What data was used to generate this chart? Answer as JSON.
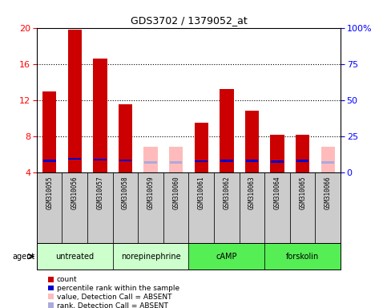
{
  "title": "GDS3702 / 1379052_at",
  "samples": [
    "GSM310055",
    "GSM310056",
    "GSM310057",
    "GSM310058",
    "GSM310059",
    "GSM310060",
    "GSM310061",
    "GSM310062",
    "GSM310063",
    "GSM310064",
    "GSM310065",
    "GSM310066"
  ],
  "red_values": [
    13.0,
    19.8,
    16.6,
    11.5,
    null,
    null,
    9.5,
    13.2,
    10.8,
    8.2,
    8.2,
    null
  ],
  "pink_values": [
    null,
    null,
    null,
    null,
    6.8,
    6.8,
    null,
    null,
    null,
    null,
    null,
    6.8
  ],
  "blue_rank": [
    8.1,
    9.5,
    9.0,
    8.2,
    null,
    null,
    7.8,
    8.1,
    8.1,
    7.5,
    8.1,
    null
  ],
  "lavender_rank": [
    null,
    null,
    null,
    null,
    7.0,
    7.0,
    null,
    null,
    null,
    null,
    null,
    7.0
  ],
  "groups": [
    {
      "label": "untreated",
      "start": 0,
      "end": 3,
      "color": "#ccffcc"
    },
    {
      "label": "norepinephrine",
      "start": 3,
      "end": 6,
      "color": "#ccffcc"
    },
    {
      "label": "cAMP",
      "start": 6,
      "end": 9,
      "color": "#55ee55"
    },
    {
      "label": "forskolin",
      "start": 9,
      "end": 12,
      "color": "#55ee55"
    }
  ],
  "ylim_left": [
    4,
    20
  ],
  "ylim_right": [
    0,
    100
  ],
  "yticks_left": [
    4,
    8,
    12,
    16,
    20
  ],
  "yticks_right": [
    0,
    25,
    50,
    75,
    100
  ],
  "yticklabels_right": [
    "0",
    "25",
    "50",
    "75",
    "100%"
  ],
  "bar_width": 0.55,
  "red_color": "#cc0000",
  "pink_color": "#ffbbbb",
  "blue_color": "#0000cc",
  "lavender_color": "#aaaadd",
  "background_color": "#ffffff",
  "agent_label": "agent"
}
